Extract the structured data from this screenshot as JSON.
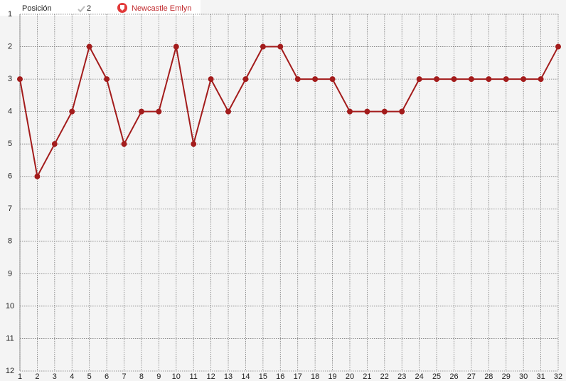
{
  "chart_data": {
    "type": "line",
    "title": "Posición",
    "badge": "2",
    "x": [
      1,
      2,
      3,
      4,
      5,
      6,
      7,
      8,
      9,
      10,
      11,
      12,
      13,
      14,
      15,
      16,
      17,
      18,
      19,
      20,
      21,
      22,
      23,
      24,
      25,
      26,
      27,
      28,
      29,
      30,
      31,
      32
    ],
    "series": [
      {
        "name": "Newcastle Emlyn",
        "color": "#a31c1c",
        "values": [
          3,
          6,
          5,
          4,
          2,
          3,
          5,
          4,
          4,
          2,
          5,
          3,
          4,
          3,
          2,
          2,
          3,
          3,
          3,
          4,
          4,
          4,
          4,
          3,
          3,
          3,
          3,
          3,
          3,
          3,
          3,
          2
        ]
      }
    ],
    "xlim": [
      1,
      32
    ],
    "xticks": [
      1,
      2,
      3,
      4,
      5,
      6,
      7,
      8,
      9,
      10,
      11,
      12,
      13,
      14,
      15,
      16,
      17,
      18,
      19,
      20,
      21,
      22,
      23,
      24,
      25,
      26,
      27,
      28,
      29,
      30,
      31,
      32
    ],
    "ylim": [
      1,
      12
    ],
    "yticks": [
      1,
      2,
      3,
      4,
      5,
      6,
      7,
      8,
      9,
      10,
      11,
      12
    ],
    "y_inverted": true,
    "grid": true
  }
}
